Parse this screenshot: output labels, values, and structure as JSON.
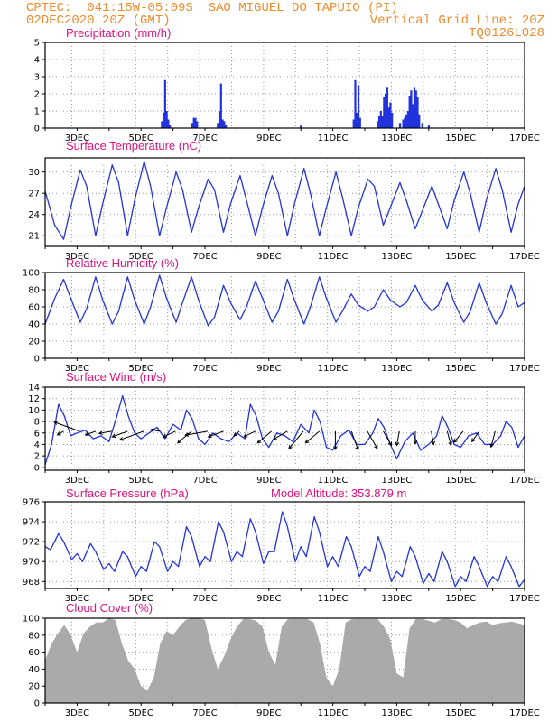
{
  "header": {
    "line1_left": "CPTEC:  041:15W-05:09S  SAO MIGUEL DO TAPUIO (PI)",
    "line2_left": "02DEC2020 20Z (GMT)",
    "line2_right": "Vertical Grid Line: 20Z",
    "line3_right": "TQ0126L028"
  },
  "colors": {
    "header": "#f08a2c",
    "title": "#e0127c",
    "line": "#2233dd",
    "cloud": "#aaaaaa",
    "grid": "#999999"
  },
  "x_axis": {
    "start_day": 2.0,
    "end_day": 17.0,
    "tick_days": [
      3,
      5,
      7,
      9,
      11,
      13,
      15,
      17
    ],
    "tick_labels": [
      "3DEC",
      "5DEC",
      "7DEC",
      "9DEC",
      "11DEC",
      "13DEC",
      "15DEC",
      "17DEC"
    ],
    "vertical_grid_hour": 20
  },
  "chart_data": [
    {
      "id": "precip",
      "type": "bar",
      "title": "Precipitation (mm/h)",
      "ylim": [
        0,
        5
      ],
      "yticks": [
        0,
        1,
        2,
        3,
        4,
        5
      ],
      "x_unit": "day of December 2020 (GMT)",
      "x": [
        5.65,
        5.7,
        5.75,
        5.8,
        5.85,
        5.9,
        6.6,
        6.65,
        6.7,
        6.75,
        7.4,
        7.45,
        7.5,
        7.55,
        7.6,
        7.65,
        10.0,
        11.65,
        11.7,
        11.75,
        11.8,
        11.85,
        12.4,
        12.45,
        12.5,
        12.55,
        12.6,
        12.65,
        12.7,
        12.75,
        12.8,
        12.85,
        13.1,
        13.2,
        13.25,
        13.3,
        13.35,
        13.4,
        13.45,
        13.5,
        13.55,
        13.6,
        13.65,
        13.7,
        13.8,
        14.0
      ],
      "values": [
        0.4,
        0.9,
        2.8,
        1.0,
        0.5,
        0.2,
        0.3,
        0.6,
        0.6,
        0.4,
        0.3,
        1.0,
        2.6,
        0.5,
        0.4,
        0.2,
        0.15,
        0.5,
        2.8,
        0.9,
        2.5,
        0.6,
        0.4,
        0.7,
        1.0,
        0.7,
        1.8,
        2.0,
        2.4,
        1.2,
        1.5,
        0.9,
        0.3,
        0.5,
        0.6,
        0.8,
        1.0,
        1.9,
        2.2,
        1.4,
        2.4,
        2.2,
        1.8,
        0.8,
        0.3,
        0.15
      ]
    },
    {
      "id": "temp",
      "type": "line",
      "title": "Surface Temperature (nC)",
      "ylim": [
        19.5,
        32
      ],
      "yticks": [
        21,
        24,
        27,
        30
      ],
      "x_unit": "day of December 2020 (GMT)",
      "x": [
        2.0,
        2.3,
        2.58,
        2.8,
        3.1,
        3.3,
        3.58,
        3.8,
        4.1,
        4.3,
        4.58,
        4.8,
        5.1,
        5.3,
        5.58,
        5.8,
        6.1,
        6.3,
        6.58,
        6.8,
        7.1,
        7.3,
        7.58,
        7.8,
        8.1,
        8.3,
        8.58,
        8.8,
        9.1,
        9.3,
        9.58,
        9.8,
        10.1,
        10.3,
        10.58,
        10.8,
        11.1,
        11.3,
        11.58,
        11.8,
        12.1,
        12.3,
        12.58,
        12.8,
        13.1,
        13.3,
        13.58,
        13.8,
        14.1,
        14.3,
        14.58,
        14.8,
        15.1,
        15.3,
        15.58,
        15.8,
        16.1,
        16.3,
        16.58,
        16.8,
        17.0
      ],
      "values": [
        27.3,
        22.5,
        20.5,
        25.0,
        30.3,
        28.0,
        21.0,
        25.5,
        31.0,
        28.5,
        21.0,
        26.0,
        31.5,
        28.0,
        21.0,
        25.0,
        30.0,
        27.5,
        21.5,
        25.0,
        29.0,
        27.5,
        21.5,
        25.5,
        29.5,
        26.0,
        21.0,
        25.0,
        29.5,
        27.0,
        21.0,
        25.5,
        30.5,
        27.0,
        21.0,
        25.0,
        30.0,
        26.5,
        21.0,
        25.0,
        29.0,
        28.0,
        22.5,
        25.0,
        28.5,
        26.0,
        22.0,
        24.5,
        28.0,
        25.5,
        22.0,
        26.0,
        30.0,
        27.0,
        21.5,
        26.0,
        30.5,
        27.5,
        21.5,
        25.5,
        28.0
      ]
    },
    {
      "id": "rh",
      "type": "line",
      "title": "Relative Humidity (%)",
      "ylim": [
        0,
        100
      ],
      "yticks": [
        0,
        20,
        40,
        60,
        80,
        100
      ],
      "x_unit": "day of December 2020 (GMT)",
      "x": [
        2.0,
        2.3,
        2.58,
        2.8,
        3.1,
        3.3,
        3.58,
        3.8,
        4.1,
        4.3,
        4.58,
        4.8,
        5.1,
        5.3,
        5.58,
        5.8,
        6.1,
        6.3,
        6.58,
        6.8,
        7.1,
        7.3,
        7.58,
        7.8,
        8.1,
        8.3,
        8.58,
        8.8,
        9.1,
        9.3,
        9.58,
        9.8,
        10.1,
        10.3,
        10.58,
        10.8,
        11.1,
        11.3,
        11.58,
        11.8,
        12.1,
        12.3,
        12.58,
        12.8,
        13.1,
        13.3,
        13.58,
        13.8,
        14.1,
        14.3,
        14.58,
        14.8,
        15.1,
        15.3,
        15.58,
        15.8,
        16.1,
        16.3,
        16.58,
        16.8,
        17.0
      ],
      "values": [
        40,
        70,
        92,
        70,
        42,
        58,
        95,
        68,
        40,
        55,
        95,
        68,
        40,
        60,
        97,
        70,
        42,
        65,
        95,
        68,
        38,
        48,
        85,
        65,
        45,
        60,
        90,
        70,
        42,
        55,
        92,
        68,
        40,
        60,
        95,
        70,
        42,
        55,
        75,
        62,
        55,
        60,
        80,
        68,
        60,
        65,
        85,
        68,
        55,
        62,
        88,
        65,
        42,
        55,
        88,
        65,
        40,
        52,
        85,
        60,
        65
      ]
    },
    {
      "id": "wind",
      "type": "line",
      "title": "Surface Wind (m/s)",
      "ylim": [
        -0.5,
        14
      ],
      "yticks": [
        0,
        2,
        4,
        6,
        8,
        10,
        12,
        14
      ],
      "x_unit": "day of December 2020 (GMT)",
      "x": [
        2.0,
        2.2,
        2.42,
        2.6,
        2.8,
        3.0,
        3.25,
        3.5,
        3.75,
        4.0,
        4.25,
        4.42,
        4.6,
        4.8,
        5.0,
        5.25,
        5.5,
        5.75,
        6.0,
        6.25,
        6.42,
        6.6,
        6.8,
        7.0,
        7.25,
        7.5,
        7.75,
        8.0,
        8.25,
        8.42,
        8.6,
        8.8,
        9.0,
        9.25,
        9.5,
        9.75,
        10.0,
        10.25,
        10.42,
        10.6,
        10.8,
        11.0,
        11.25,
        11.5,
        11.75,
        12.0,
        12.25,
        12.42,
        12.6,
        12.8,
        13.0,
        13.25,
        13.5,
        13.75,
        14.0,
        14.25,
        14.42,
        14.6,
        14.8,
        15.0,
        15.25,
        15.5,
        15.75,
        16.0,
        16.25,
        16.42,
        16.6,
        16.8,
        17.0
      ],
      "values": [
        0.5,
        4.0,
        11.0,
        9.0,
        5.5,
        6.0,
        6.5,
        5.0,
        5.5,
        4.5,
        9.0,
        12.5,
        9.0,
        6.0,
        5.0,
        6.0,
        7.0,
        5.0,
        7.5,
        6.5,
        10.0,
        8.5,
        5.0,
        4.0,
        6.0,
        5.0,
        4.5,
        6.0,
        5.0,
        11.0,
        9.0,
        5.0,
        3.5,
        6.0,
        5.5,
        4.5,
        7.5,
        6.0,
        10.0,
        8.0,
        3.5,
        3.0,
        5.5,
        6.5,
        4.0,
        4.0,
        6.0,
        8.5,
        7.0,
        4.0,
        1.5,
        4.5,
        6.0,
        3.0,
        4.0,
        5.5,
        9.0,
        7.0,
        4.0,
        3.5,
        5.5,
        6.0,
        4.0,
        4.0,
        5.5,
        8.0,
        7.0,
        3.5,
        5.5
      ],
      "arrow_x": [
        2.58,
        3.08,
        3.58,
        4.08,
        4.58,
        5.08,
        5.58,
        6.08,
        6.58,
        7.08,
        7.58,
        8.08,
        8.58,
        9.08,
        9.58,
        10.08,
        10.58,
        11.08,
        11.58,
        12.08,
        12.58,
        13.08,
        13.58,
        14.08,
        14.58,
        15.08,
        15.58,
        16.08
      ],
      "arrow_dir_deg": [
        210,
        160,
        200,
        190,
        200,
        200,
        170,
        205,
        220,
        190,
        200,
        220,
        205,
        220,
        210,
        230,
        220,
        270,
        290,
        300,
        300,
        260,
        270,
        280,
        285,
        230,
        235,
        255
      ],
      "arrow_len": [
        8,
        30,
        12,
        14,
        18,
        28,
        10,
        15,
        20,
        25,
        18,
        8,
        14,
        20,
        18,
        25,
        20,
        20,
        22,
        22,
        18,
        16,
        14,
        15,
        16,
        16,
        14,
        18
      ]
    },
    {
      "id": "pres",
      "type": "line",
      "title": "Surface Pressure (hPa)",
      "subtitle": "Model Altitude: 353.879 m",
      "ylim": [
        967.3,
        976
      ],
      "yticks": [
        968,
        970,
        972,
        974,
        976
      ],
      "x_unit": "day of December 2020 (GMT)",
      "x": [
        2.0,
        2.17,
        2.42,
        2.58,
        2.83,
        3.0,
        3.17,
        3.42,
        3.58,
        3.83,
        4.0,
        4.17,
        4.42,
        4.58,
        4.83,
        5.0,
        5.17,
        5.42,
        5.58,
        5.83,
        6.0,
        6.17,
        6.42,
        6.58,
        6.83,
        7.0,
        7.17,
        7.42,
        7.58,
        7.83,
        8.0,
        8.17,
        8.42,
        8.58,
        8.83,
        9.0,
        9.17,
        9.42,
        9.58,
        9.83,
        10.0,
        10.17,
        10.42,
        10.58,
        10.83,
        11.0,
        11.17,
        11.42,
        11.58,
        11.83,
        12.0,
        12.17,
        12.42,
        12.58,
        12.83,
        13.0,
        13.17,
        13.42,
        13.58,
        13.83,
        14.0,
        14.17,
        14.42,
        14.58,
        14.83,
        15.0,
        15.17,
        15.42,
        15.58,
        15.83,
        16.0,
        16.17,
        16.42,
        16.58,
        16.83,
        17.0
      ],
      "values": [
        971.5,
        971.2,
        972.8,
        972.0,
        970.2,
        970.8,
        970.0,
        971.8,
        971.0,
        969.2,
        969.8,
        969.0,
        971.0,
        970.5,
        968.5,
        969.5,
        969.0,
        972.0,
        971.5,
        969.0,
        970.0,
        969.5,
        973.5,
        972.5,
        969.5,
        970.5,
        970.0,
        974.0,
        973.0,
        970.0,
        971.0,
        970.5,
        974.3,
        973.0,
        969.8,
        971.0,
        971.0,
        975.0,
        973.5,
        970.0,
        971.5,
        970.5,
        974.5,
        973.0,
        969.5,
        970.5,
        969.5,
        972.5,
        971.5,
        968.5,
        969.5,
        969.0,
        972.5,
        971.0,
        968.0,
        969.0,
        968.5,
        971.5,
        970.5,
        967.8,
        968.8,
        968.0,
        971.0,
        970.0,
        967.5,
        968.5,
        968.0,
        970.5,
        969.5,
        967.5,
        968.5,
        968.0,
        970.5,
        969.5,
        967.5,
        968.2
      ]
    },
    {
      "id": "cloud",
      "type": "area",
      "title": "Cloud Cover (%)",
      "ylim": [
        0,
        100
      ],
      "yticks": [
        0,
        20,
        40,
        60,
        80,
        100
      ],
      "x_unit": "day of December 2020 (GMT)",
      "x": [
        2.0,
        2.2,
        2.4,
        2.6,
        2.8,
        3.0,
        3.2,
        3.4,
        3.6,
        3.8,
        4.0,
        4.2,
        4.4,
        4.6,
        4.8,
        5.0,
        5.2,
        5.4,
        5.6,
        5.8,
        6.0,
        6.2,
        6.4,
        6.6,
        6.8,
        7.0,
        7.2,
        7.4,
        7.6,
        7.8,
        8.0,
        8.2,
        8.4,
        8.6,
        8.8,
        9.0,
        9.2,
        9.4,
        9.6,
        9.8,
        10.0,
        10.2,
        10.4,
        10.6,
        10.8,
        11.0,
        11.2,
        11.4,
        11.6,
        11.8,
        12.0,
        12.2,
        12.4,
        12.6,
        12.8,
        13.0,
        13.2,
        13.4,
        13.6,
        13.8,
        14.0,
        14.2,
        14.4,
        14.6,
        14.8,
        15.0,
        15.2,
        15.4,
        15.6,
        15.8,
        16.0,
        16.2,
        16.4,
        16.6,
        16.8,
        17.0
      ],
      "values": [
        50,
        70,
        82,
        92,
        80,
        60,
        82,
        90,
        95,
        95,
        100,
        98,
        70,
        50,
        40,
        20,
        15,
        30,
        70,
        85,
        80,
        90,
        98,
        100,
        100,
        98,
        65,
        40,
        55,
        75,
        90,
        99,
        99,
        97,
        90,
        60,
        45,
        90,
        99,
        99,
        99,
        99,
        95,
        70,
        30,
        20,
        40,
        95,
        99,
        99,
        99,
        99,
        99,
        90,
        75,
        35,
        30,
        88,
        99,
        99,
        97,
        95,
        99,
        99,
        98,
        95,
        88,
        92,
        95,
        96,
        92,
        94,
        95,
        96,
        94,
        92
      ]
    }
  ]
}
